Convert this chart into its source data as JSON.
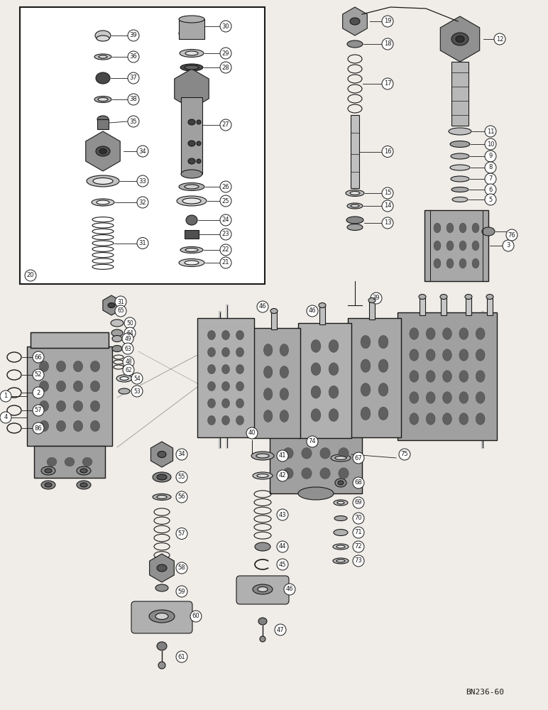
{
  "bg_color": "#f0ede8",
  "line_color": "#1a1a1a",
  "fig_width": 7.72,
  "fig_height": 10.0,
  "dpi": 100,
  "watermark": "BN236-60"
}
